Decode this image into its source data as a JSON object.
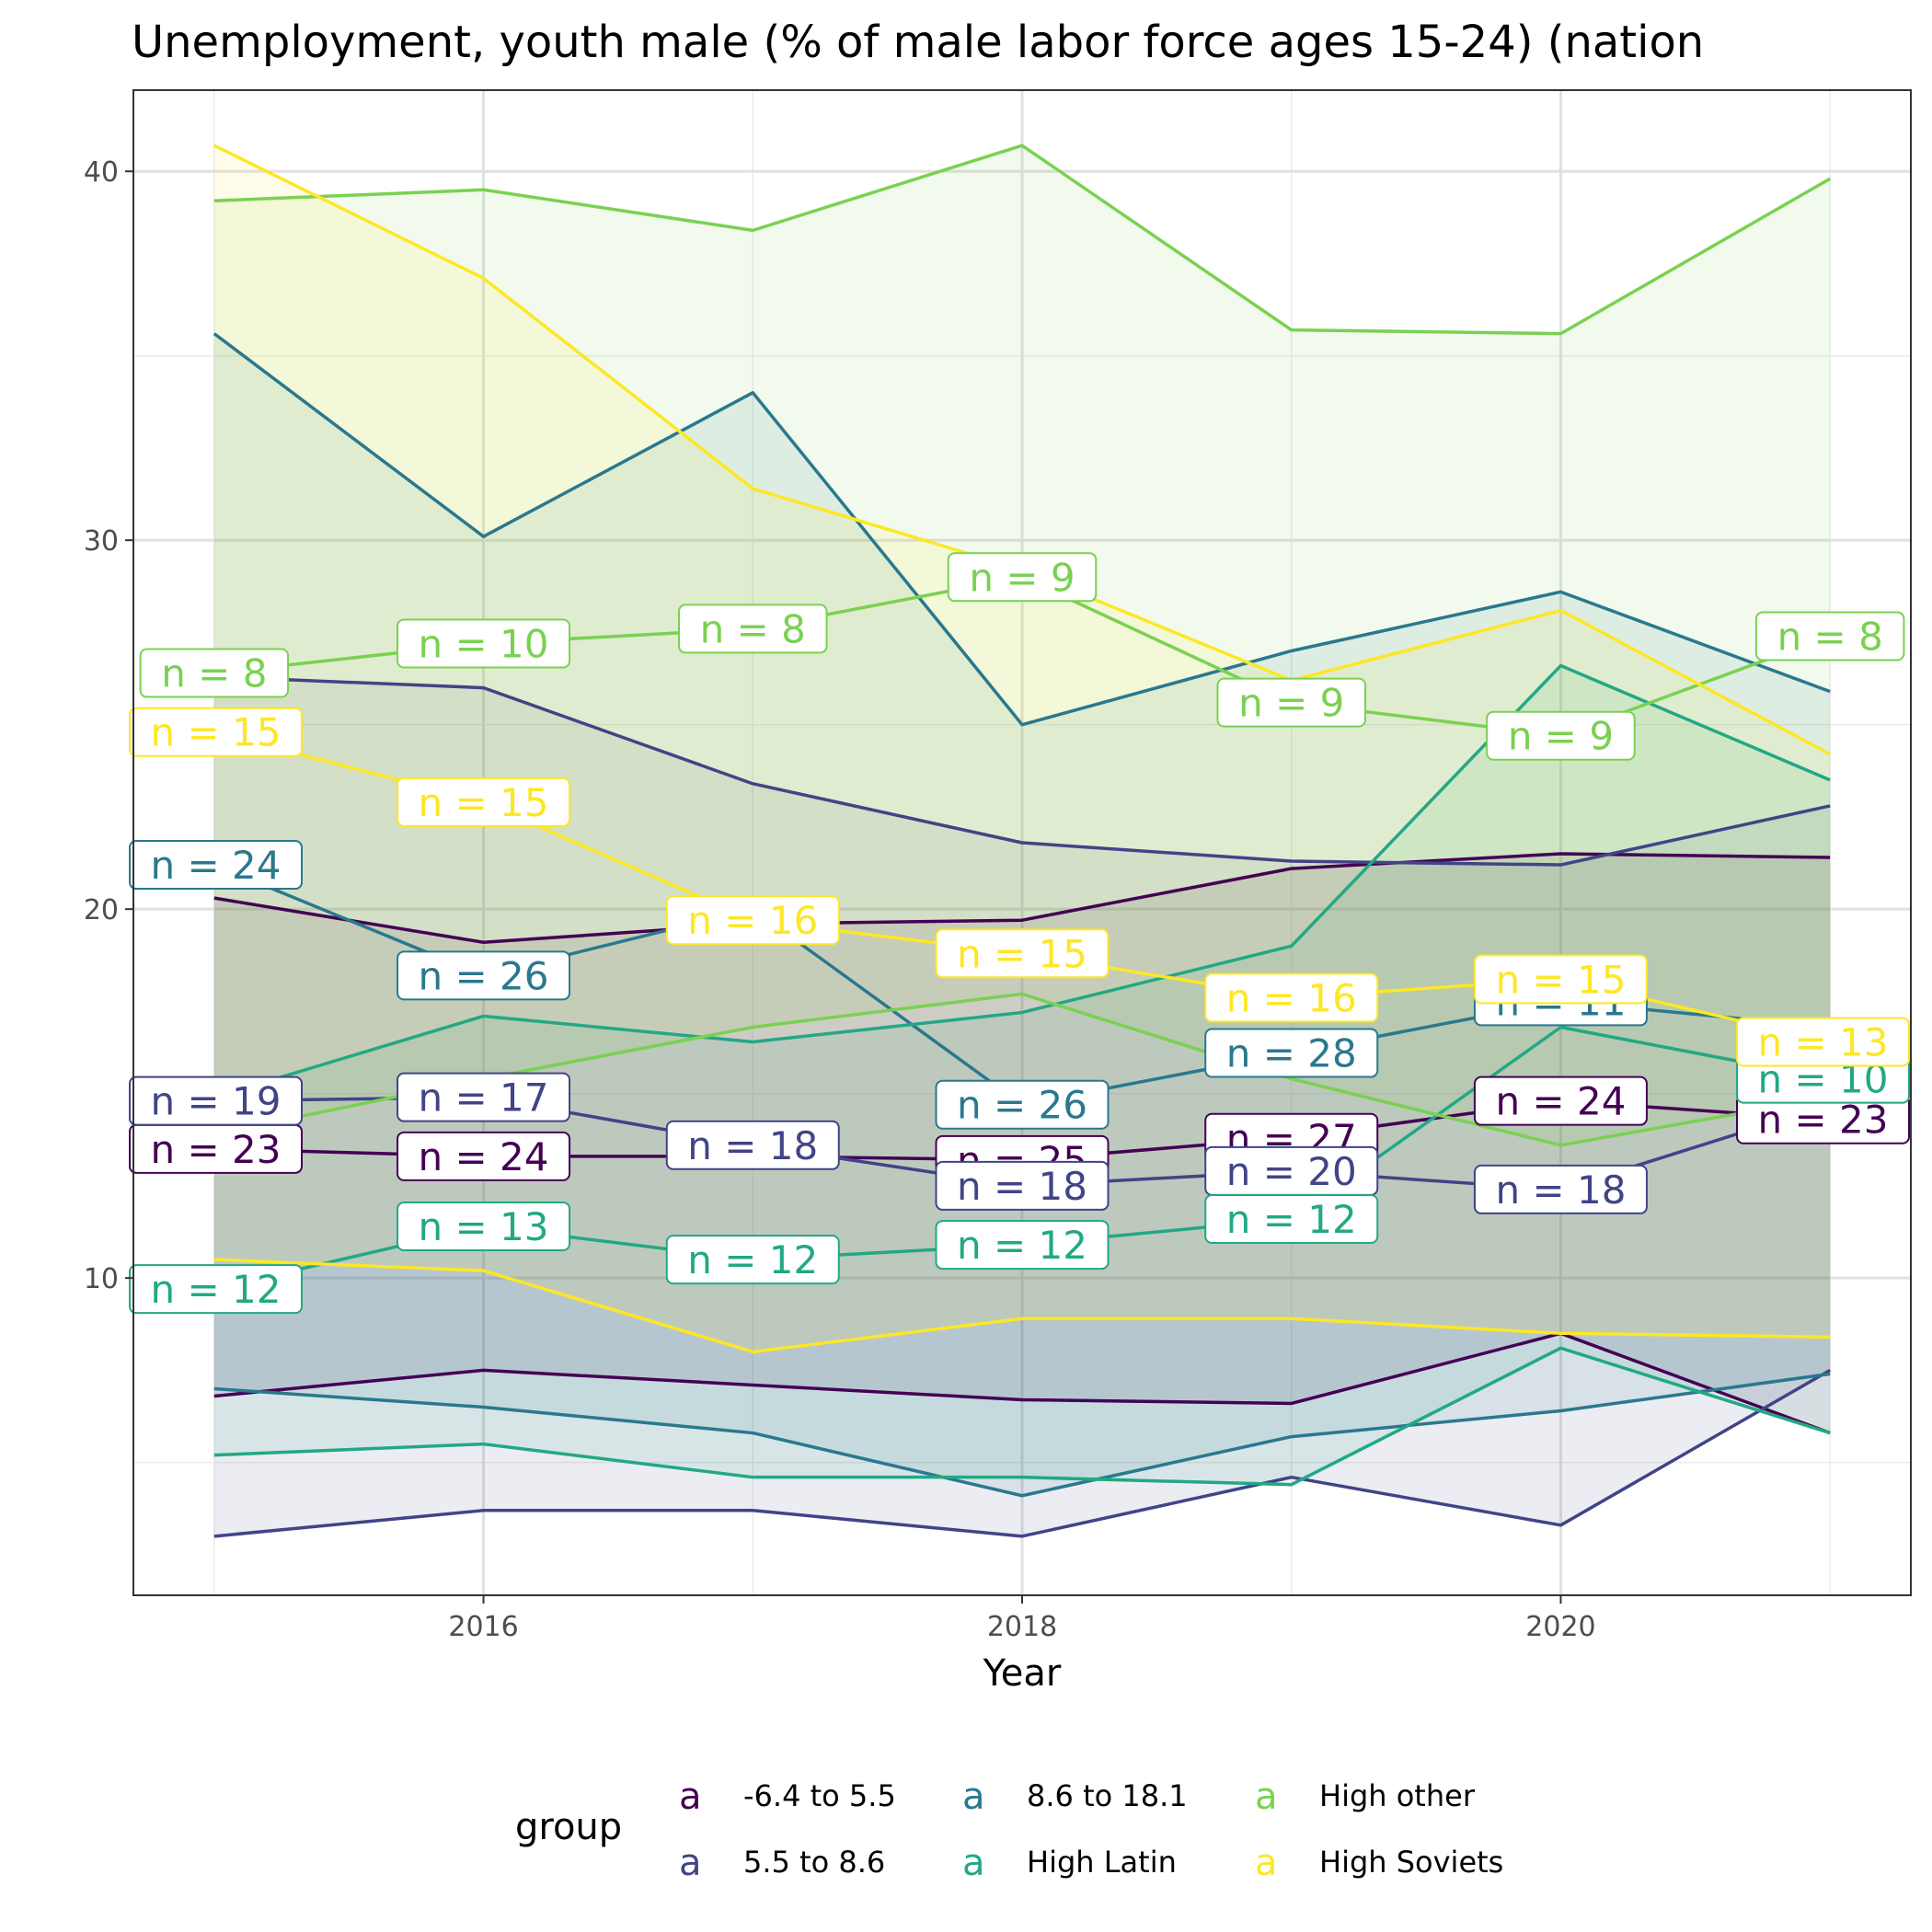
{
  "chart_data": {
    "type": "line",
    "title": "Unemployment, youth male (% of male labor force ages 15-24) (nation",
    "xlabel": "Year",
    "ylabel": "",
    "xlim": [
      2014.7,
      2021.3
    ],
    "ylim": [
      1.4,
      42.2
    ],
    "x_ticks": [
      2016,
      2018,
      2020
    ],
    "y_ticks": [
      10,
      20,
      30,
      40
    ],
    "grid": true,
    "legend": {
      "title": "group",
      "position": "bottom",
      "key_glyph": "a",
      "entries": [
        "-6.4 to 5.5",
        "5.5 to 8.6",
        "8.6 to 18.1",
        "High Latin",
        "High other",
        "High Soviets"
      ]
    },
    "x": [
      2015,
      2016,
      2017,
      2018,
      2019,
      2020,
      2021
    ],
    "series": [
      {
        "name": "-6.4 to 5.5",
        "color": "#440154",
        "upper": [
          20.3,
          19.1,
          19.6,
          19.7,
          21.1,
          21.5,
          21.4
        ],
        "median": [
          13.5,
          13.3,
          13.3,
          13.2,
          13.8,
          14.8,
          14.3
        ],
        "lower": [
          6.8,
          7.5,
          7.1,
          6.7,
          6.6,
          8.5,
          5.8
        ],
        "n": [
          23,
          24,
          null,
          25,
          27,
          24,
          23
        ]
      },
      {
        "name": "5.5 to 8.6",
        "color": "#414487",
        "upper": [
          26.3,
          26.0,
          23.4,
          21.8,
          21.3,
          21.2,
          22.8
        ],
        "median": [
          14.8,
          14.9,
          13.6,
          12.5,
          12.9,
          12.4,
          14.7
        ],
        "lower": [
          3.0,
          3.7,
          3.7,
          3.0,
          4.6,
          3.3,
          7.5
        ],
        "n": [
          19,
          17,
          18,
          18,
          20,
          18,
          null
        ]
      },
      {
        "name": "8.6 to 18.1",
        "color": "#2a788e",
        "upper": [
          35.6,
          30.1,
          34.0,
          25.0,
          27.0,
          28.6,
          25.9
        ],
        "median": [
          21.2,
          18.2,
          20.0,
          14.7,
          16.1,
          17.5,
          16.8
        ],
        "lower": [
          7.0,
          6.5,
          5.8,
          4.1,
          5.7,
          6.4,
          7.4
        ],
        "n": [
          24,
          26,
          null,
          26,
          28,
          11,
          null
        ]
      },
      {
        "name": "High Latin",
        "color": "#22a884",
        "upper": [
          14.9,
          17.1,
          16.4,
          17.2,
          19.0,
          26.6,
          23.5
        ],
        "median": [
          9.7,
          11.4,
          10.5,
          10.9,
          11.6,
          16.8,
          15.4
        ],
        "lower": [
          5.2,
          5.5,
          4.6,
          4.6,
          4.4,
          8.1,
          5.8
        ],
        "n": [
          12,
          13,
          12,
          12,
          12,
          null,
          10
        ]
      },
      {
        "name": "High other",
        "color": "#7ad151",
        "upper": [
          39.2,
          39.5,
          38.4,
          40.7,
          35.7,
          35.6,
          39.8
        ],
        "median": [
          26.4,
          27.2,
          27.6,
          29.0,
          25.6,
          24.7,
          27.4
        ],
        "lower": [
          13.9,
          15.4,
          16.8,
          17.7,
          15.4,
          13.6,
          14.9
        ],
        "n": [
          8,
          10,
          8,
          9,
          9,
          9,
          8
        ]
      },
      {
        "name": "High Soviets",
        "color": "#fde725",
        "upper": [
          40.7,
          37.1,
          31.4,
          29.2,
          26.2,
          28.1,
          24.2
        ],
        "median": [
          24.8,
          22.9,
          19.7,
          18.8,
          17.6,
          18.1,
          16.4
        ],
        "lower": [
          10.5,
          10.2,
          8.0,
          8.9,
          8.9,
          8.5,
          8.4
        ],
        "n": [
          15,
          15,
          16,
          15,
          16,
          15,
          13
        ]
      }
    ]
  }
}
